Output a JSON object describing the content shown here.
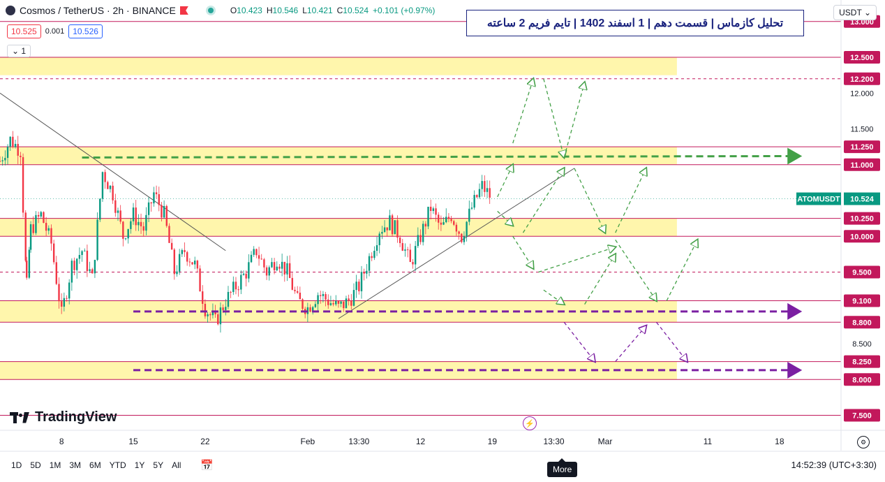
{
  "header": {
    "symbol": "Cosmos / TetherUS · 2h · BINANCE",
    "ohlc": [
      {
        "k": "O",
        "v": "10.423"
      },
      {
        "k": "H",
        "v": "10.546"
      },
      {
        "k": "L",
        "v": "10.421"
      },
      {
        "k": "C",
        "v": "10.524"
      },
      {
        "k": "",
        "v": "+0.101 (+0.97%)"
      }
    ],
    "sell_price": "10.525",
    "spread": "0.001",
    "buy_price": "10.526",
    "indicator_count": "1"
  },
  "title_annotation": "تحلیل کازماس | قسمت دهم | 1 اسفند 1402 | تایم فریم 2 ساعته",
  "currency": "USDT",
  "logo_text": "TradingView",
  "bottom_bar": {
    "ranges": [
      "1D",
      "5D",
      "1M",
      "3M",
      "6M",
      "YTD",
      "1Y",
      "5Y",
      "All"
    ],
    "clock": "14:52:39 (UTC+3:30)",
    "more_tooltip": "More"
  },
  "colors": {
    "up": "#089981",
    "down": "#f23645",
    "zone_fill": "#fff59d",
    "level_line": "#c2185b",
    "green_arrow": "#43a047",
    "purple_arrow": "#7b1fa2",
    "current_price_label": "#089981"
  },
  "chart_data": {
    "type": "candlestick",
    "symbol_label": "ATOMUSDT",
    "current_price": 10.524,
    "ylim": [
      7.3,
      13.3
    ],
    "y_ticks": [
      {
        "v": 13.0,
        "label": "13.000",
        "boxed": true
      },
      {
        "v": 12.5,
        "label": "12.500",
        "boxed": true
      },
      {
        "v": 12.2,
        "label": "12.200",
        "boxed": true
      },
      {
        "v": 12.0,
        "label": "12.000",
        "boxed": false
      },
      {
        "v": 11.5,
        "label": "11.500",
        "boxed": false
      },
      {
        "v": 11.25,
        "label": "11.250",
        "boxed": true
      },
      {
        "v": 11.0,
        "label": "11.000",
        "boxed": true
      },
      {
        "v": 10.25,
        "label": "10.250",
        "boxed": true
      },
      {
        "v": 10.0,
        "label": "10.000",
        "boxed": true
      },
      {
        "v": 9.5,
        "label": "9.500",
        "boxed": true
      },
      {
        "v": 9.1,
        "label": "9.100",
        "boxed": true
      },
      {
        "v": 8.8,
        "label": "8.800",
        "boxed": true
      },
      {
        "v": 8.5,
        "label": "8.500",
        "boxed": false
      },
      {
        "v": 8.25,
        "label": "8.250",
        "boxed": true
      },
      {
        "v": 8.0,
        "label": "8.000",
        "boxed": true
      },
      {
        "v": 7.5,
        "label": "7.500",
        "boxed": true
      }
    ],
    "x_ticks": [
      "8",
      "15",
      "22",
      "Feb",
      "13:30",
      "12",
      "19",
      "13:30",
      "Mar",
      "11",
      "18"
    ],
    "x_tick_days": [
      8,
      15,
      22,
      32,
      37,
      43,
      50,
      56,
      61,
      71,
      78
    ],
    "x_range_days": [
      2,
      84
    ],
    "zones": [
      {
        "top": 12.5,
        "bottom": 12.25,
        "end_day": 68
      },
      {
        "top": 11.25,
        "bottom": 11.0,
        "end_day": 68
      },
      {
        "top": 10.25,
        "bottom": 10.0,
        "end_day": 68
      },
      {
        "top": 9.1,
        "bottom": 8.8,
        "end_day": 68
      },
      {
        "top": 8.25,
        "bottom": 8.0,
        "end_day": 68
      }
    ],
    "dashed_levels": [
      12.2,
      9.5
    ],
    "solid_levels": [
      13.0,
      12.5,
      11.25,
      11.0,
      10.25,
      10.0,
      9.1,
      8.8,
      8.25,
      8.0,
      7.5
    ],
    "trendlines": [
      {
        "from": [
          2,
          12.0
        ],
        "to": [
          24,
          9.8
        ]
      },
      {
        "from": [
          35,
          8.85
        ],
        "to": [
          58,
          10.95
        ]
      }
    ],
    "price_path": [
      [
        2,
        11.05
      ],
      [
        3,
        11.35
      ],
      [
        4,
        11.2
      ],
      [
        4.6,
        9.3
      ],
      [
        5,
        10.1
      ],
      [
        6,
        10.3
      ],
      [
        7,
        9.9
      ],
      [
        8,
        8.9
      ],
      [
        9,
        9.6
      ],
      [
        10,
        9.8
      ],
      [
        11,
        9.4
      ],
      [
        12,
        10.9
      ],
      [
        13,
        10.6
      ],
      [
        14,
        10.0
      ],
      [
        15,
        10.3
      ],
      [
        16,
        10.1
      ],
      [
        17,
        10.6
      ],
      [
        18,
        10.3
      ],
      [
        19,
        9.5
      ],
      [
        20,
        9.8
      ],
      [
        21,
        9.6
      ],
      [
        22,
        9.0
      ],
      [
        23,
        8.8
      ],
      [
        24,
        9.1
      ],
      [
        25,
        9.3
      ],
      [
        26,
        9.5
      ],
      [
        27,
        9.8
      ],
      [
        28,
        9.5
      ],
      [
        29,
        9.7
      ],
      [
        30,
        9.5
      ],
      [
        31,
        9.1
      ],
      [
        32,
        9.0
      ],
      [
        33,
        9.2
      ],
      [
        34,
        9.1
      ],
      [
        35,
        9.0
      ],
      [
        36,
        9.1
      ],
      [
        37,
        9.3
      ],
      [
        38,
        9.7
      ],
      [
        39,
        10.1
      ],
      [
        40,
        10.2
      ],
      [
        41,
        10.0
      ],
      [
        42,
        9.6
      ],
      [
        43,
        10.0
      ],
      [
        44,
        10.4
      ],
      [
        45,
        10.1
      ],
      [
        46,
        10.3
      ],
      [
        47,
        10.0
      ],
      [
        48,
        10.4
      ],
      [
        49,
        10.7
      ],
      [
        50,
        10.52
      ]
    ],
    "green_arrows": [
      [
        [
          50.5,
          10.55
        ],
        [
          52,
          11.0
        ]
      ],
      [
        [
          52,
          11.3
        ],
        [
          54,
          12.2
        ]
      ],
      [
        [
          55,
          12.2
        ],
        [
          57,
          11.1
        ]
      ],
      [
        [
          57,
          11.1
        ],
        [
          59,
          12.15
        ]
      ],
      [
        [
          50.5,
          10.35
        ],
        [
          52,
          10.15
        ]
      ],
      [
        [
          53,
          10.05
        ],
        [
          57,
          10.95
        ]
      ],
      [
        [
          58,
          10.95
        ],
        [
          61,
          10.05
        ]
      ],
      [
        [
          62,
          10.05
        ],
        [
          65,
          10.95
        ]
      ],
      [
        [
          52,
          10.0
        ],
        [
          54,
          9.55
        ]
      ],
      [
        [
          54.5,
          9.5
        ],
        [
          62,
          9.85
        ]
      ],
      [
        [
          55,
          9.25
        ],
        [
          57,
          9.05
        ]
      ],
      [
        [
          59,
          9.05
        ],
        [
          62,
          9.75
        ]
      ],
      [
        [
          62,
          9.95
        ],
        [
          66,
          9.1
        ]
      ],
      [
        [
          67,
          9.1
        ],
        [
          70,
          9.95
        ]
      ]
    ],
    "purple_arrows": [
      [
        [
          57,
          8.8
        ],
        [
          60,
          8.25
        ]
      ],
      [
        [
          62,
          8.25
        ],
        [
          65,
          8.75
        ]
      ],
      [
        [
          66,
          8.8
        ],
        [
          69,
          8.25
        ]
      ]
    ],
    "green_long_arrow": {
      "from": [
        10,
        11.1
      ],
      "to": [
        80,
        11.12
      ]
    },
    "purple_long_arrows": [
      {
        "from": [
          15,
          8.95
        ],
        "to": [
          80,
          8.95
        ]
      },
      {
        "from": [
          15,
          8.13
        ],
        "to": [
          80,
          8.13
        ]
      }
    ]
  }
}
